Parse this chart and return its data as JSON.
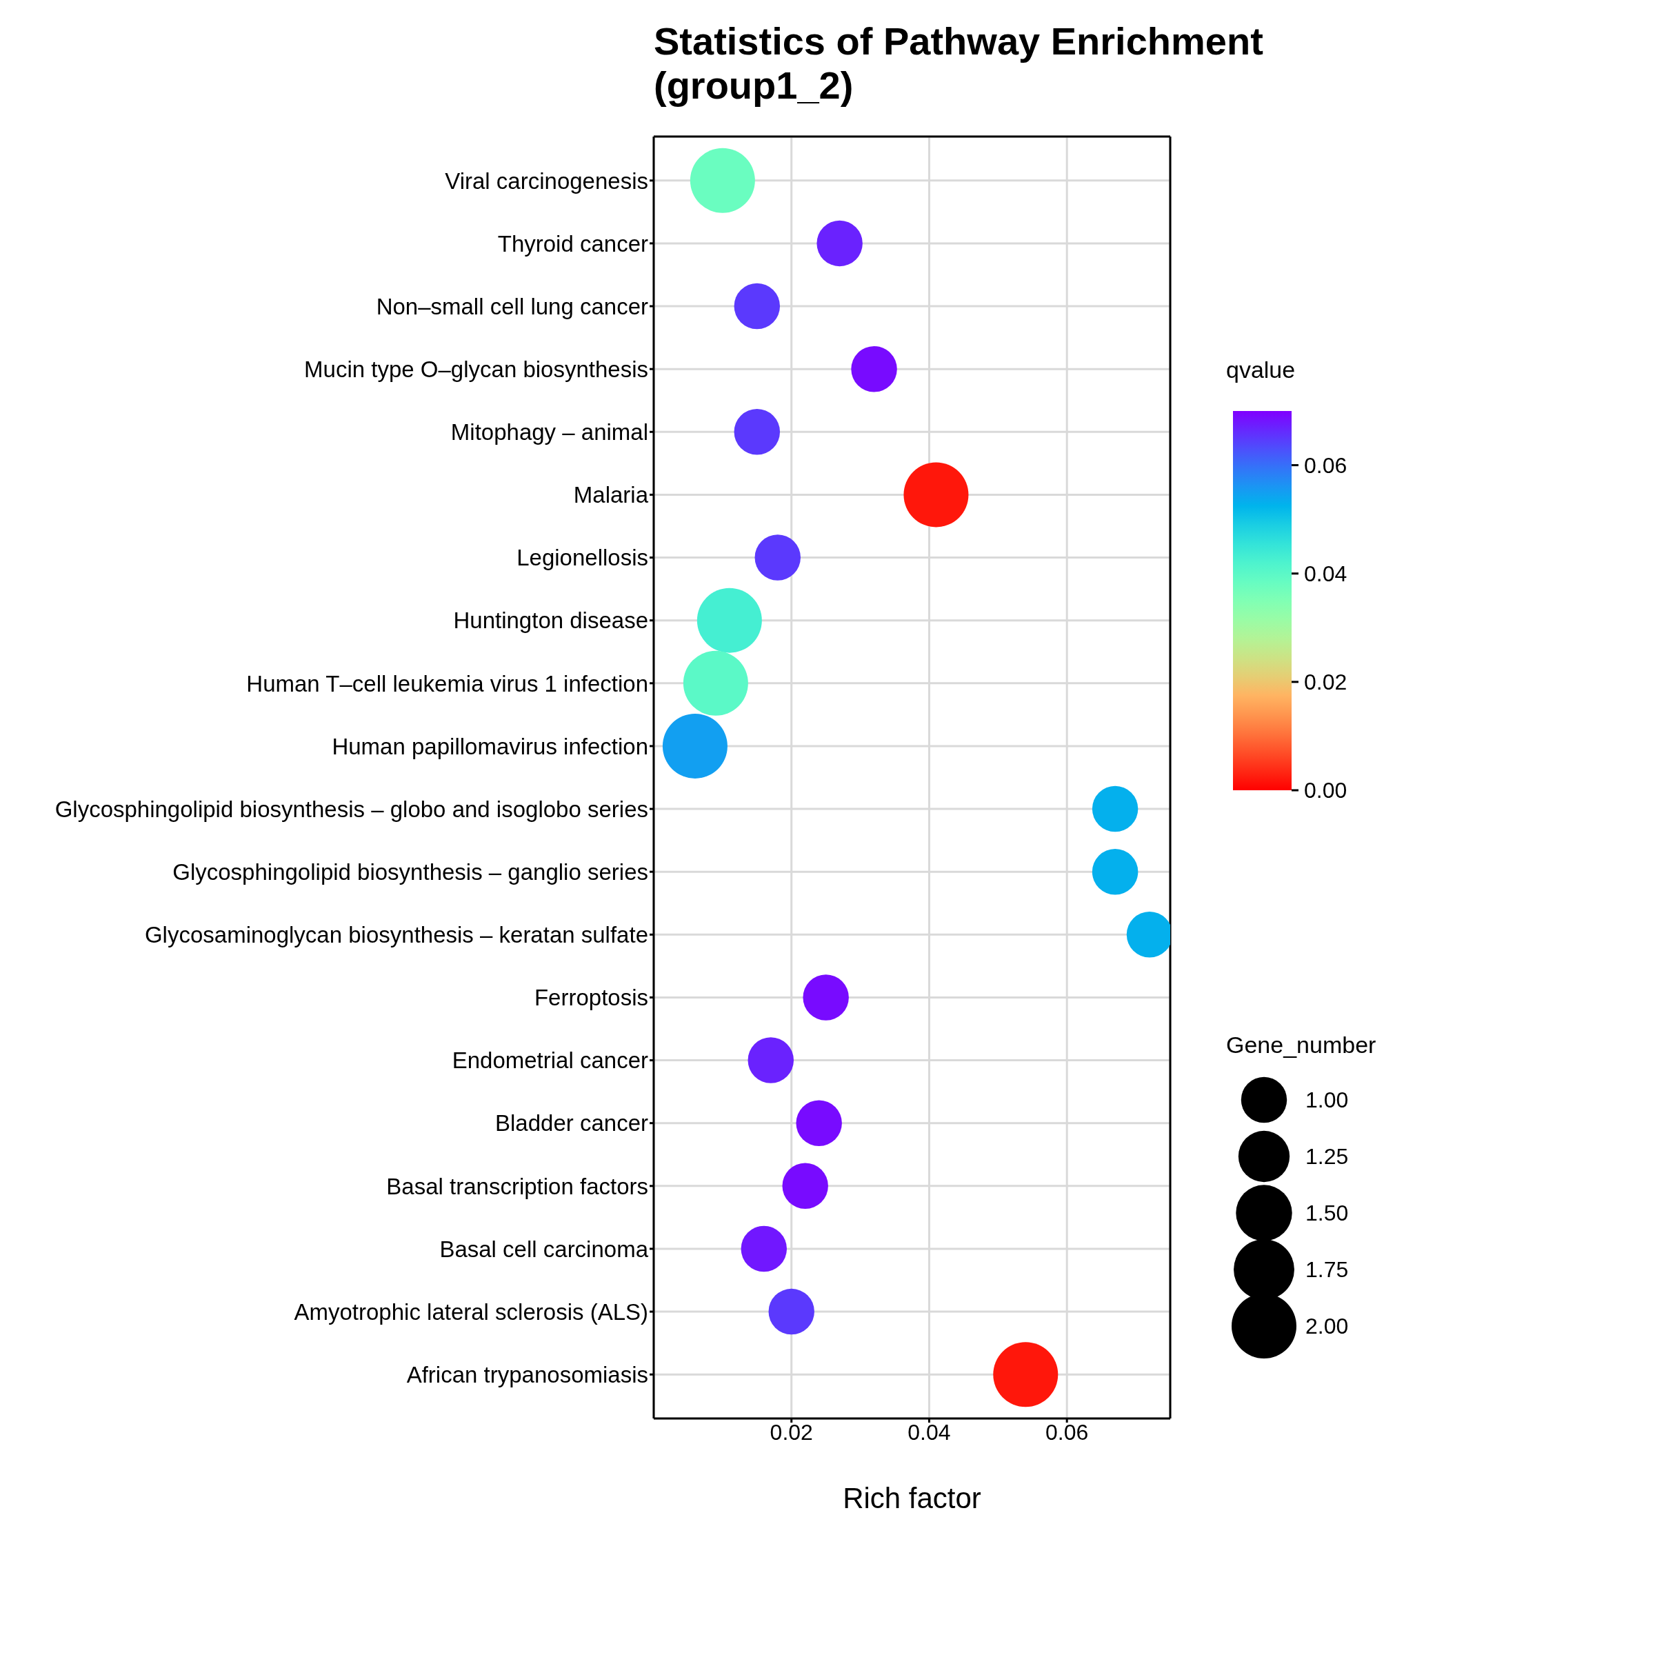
{
  "chart_data": {
    "type": "bubble",
    "title": "Statistics of Pathway Enrichment\n(group1_2)",
    "xlabel": "Rich factor",
    "clabel": "qvalue",
    "legend_title": "Gene_number",
    "categories": [
      "Viral carcinogenesis",
      "Thyroid cancer",
      "Non–small cell lung cancer",
      "Mucin type O–glycan biosynthesis",
      "Mitophagy – animal",
      "Malaria",
      "Legionellosis",
      "Huntington disease",
      "Human T–cell leukemia virus 1 infection",
      "Human papillomavirus infection",
      "Glycosphingolipid biosynthesis – globo and isoglobo series",
      "Glycosphingolipid biosynthesis – ganglio series",
      "Glycosaminoglycan biosynthesis – keratan sulfate",
      "Ferroptosis",
      "Endometrial cancer",
      "Bladder cancer",
      "Basal transcription factors",
      "Basal cell carcinoma",
      "Amyotrophic lateral sclerosis (ALS)",
      "African trypanosomiasis"
    ],
    "values": [
      0.01,
      0.027,
      0.015,
      0.032,
      0.015,
      0.041,
      0.018,
      0.011,
      0.009,
      0.006,
      0.067,
      0.067,
      0.072,
      0.025,
      0.017,
      0.024,
      0.022,
      0.016,
      0.02,
      0.054
    ],
    "sizes": [
      2,
      1,
      1,
      1,
      1,
      2,
      1,
      2,
      2,
      2,
      1,
      1,
      1,
      1,
      1,
      1,
      1,
      1,
      1,
      2
    ],
    "cvalues": [
      0.038,
      0.067,
      0.065,
      0.069,
      0.065,
      0.002,
      0.065,
      0.043,
      0.04,
      0.055,
      0.053,
      0.053,
      0.053,
      0.069,
      0.067,
      0.069,
      0.069,
      0.068,
      0.065,
      0.002
    ],
    "size_legend": [
      {
        "value": 1,
        "label": "1.00"
      },
      {
        "value": 1.25,
        "label": "1.25"
      },
      {
        "value": 1.5,
        "label": "1.50"
      },
      {
        "value": 1.75,
        "label": "1.75"
      },
      {
        "value": 2,
        "label": "2.00"
      }
    ],
    "orientation": "horizontal",
    "xlim": [
      0,
      0.075
    ],
    "xticks": [
      0.02,
      0.04,
      0.06
    ],
    "clim": [
      0,
      0.07
    ],
    "cticks": [
      {
        "value": 0,
        "label": "0.00"
      },
      {
        "value": 0.02,
        "label": "0.02"
      },
      {
        "value": 0.04,
        "label": "0.04"
      },
      {
        "value": 0.06,
        "label": "0.06"
      }
    ],
    "grid": true
  }
}
